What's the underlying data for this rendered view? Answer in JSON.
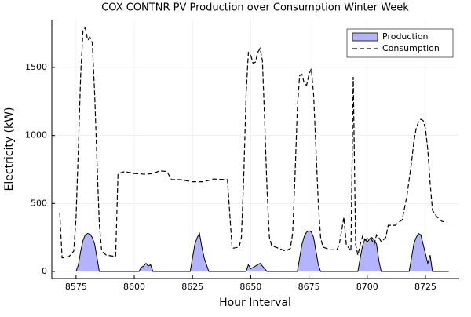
{
  "chart_data": {
    "type": "area-line",
    "title": "COX CONTNR PV Production over Consumption Winter Week",
    "x_label": "Hour Interval",
    "y_label": "Electricity (kW)",
    "xlim": [
      8564.6,
      8739.5
    ],
    "ylim": [
      -52,
      1852
    ],
    "xticks": [
      8575,
      8600,
      8625,
      8650,
      8675,
      8700,
      8725
    ],
    "yticks": [
      0,
      500,
      1000,
      1500
    ],
    "grid": true,
    "legend": "top-right",
    "series": [
      {
        "name": "Production",
        "kind": "area",
        "color": "#b3b3ff",
        "line_color": "#000000",
        "x": [
          8575,
          8576,
          8577,
          8578,
          8579,
          8580,
          8581,
          8582,
          8583,
          8584,
          8585,
          8602,
          8603,
          8604,
          8605,
          8606,
          8607,
          8608,
          8624,
          8625,
          8626,
          8627,
          8628,
          8629,
          8630,
          8631,
          8632,
          8648,
          8649,
          8650,
          8651,
          8652,
          8653,
          8654,
          8655,
          8656,
          8657,
          8670,
          8671,
          8672,
          8673,
          8674,
          8675,
          8676,
          8677,
          8678,
          8679,
          8680,
          8696,
          8697,
          8698,
          8699,
          8700,
          8701,
          8702,
          8703,
          8704,
          8705,
          8706,
          8718,
          8719,
          8720,
          8721,
          8722,
          8723,
          8724,
          8725,
          8726,
          8727,
          8728,
          8735
        ],
        "values": [
          0,
          50,
          150,
          230,
          270,
          280,
          275,
          250,
          200,
          100,
          0,
          0,
          30,
          40,
          60,
          40,
          50,
          0,
          0,
          100,
          200,
          250,
          280,
          180,
          100,
          50,
          0,
          0,
          50,
          20,
          30,
          40,
          50,
          60,
          40,
          20,
          0,
          0,
          100,
          200,
          260,
          290,
          300,
          290,
          250,
          150,
          50,
          0,
          0,
          100,
          190,
          240,
          215,
          240,
          250,
          230,
          200,
          80,
          0,
          0,
          100,
          200,
          250,
          280,
          270,
          200,
          130,
          60,
          120,
          0,
          0
        ]
      },
      {
        "name": "Consumption",
        "kind": "line",
        "color": "#000000",
        "dash": true,
        "x": [
          8568,
          8569,
          8572,
          8574,
          8575,
          8576,
          8577,
          8578,
          8579,
          8580,
          8581,
          8582,
          8583,
          8584,
          8585,
          8586,
          8588,
          8592,
          8593,
          8596,
          8600,
          8605,
          8608,
          8611,
          8614,
          8616,
          8620,
          8625,
          8630,
          8634,
          8640,
          8642,
          8645,
          8646,
          8647,
          8648,
          8649,
          8650,
          8651,
          8652,
          8653,
          8654,
          8655,
          8656,
          8657,
          8658,
          8659,
          8662,
          8665,
          8667,
          8668,
          8669,
          8670,
          8671,
          8672,
          8673,
          8674,
          8675,
          8676,
          8677,
          8678,
          8679,
          8680,
          8681,
          8684,
          8687,
          8688,
          8690,
          8691,
          8693,
          8694,
          8695,
          8696,
          8697,
          8698,
          8699,
          8700,
          8701,
          8702,
          8703,
          8704,
          8705,
          8706,
          8708,
          8709,
          8712,
          8715,
          8717,
          8719,
          8720,
          8721,
          8722,
          8723,
          8724,
          8725,
          8726,
          8727,
          8728,
          8730,
          8732,
          8734
        ],
        "values": [
          430,
          100,
          110,
          150,
          400,
          900,
          1450,
          1780,
          1790,
          1700,
          1720,
          1680,
          1300,
          800,
          350,
          150,
          120,
          110,
          720,
          735,
          720,
          715,
          720,
          740,
          735,
          675,
          675,
          660,
          660,
          680,
          675,
          170,
          180,
          250,
          700,
          1300,
          1610,
          1590,
          1530,
          1540,
          1610,
          1640,
          1550,
          1100,
          600,
          250,
          190,
          170,
          150,
          170,
          280,
          700,
          1200,
          1440,
          1450,
          1380,
          1370,
          1450,
          1490,
          1300,
          900,
          500,
          250,
          180,
          160,
          160,
          200,
          400,
          200,
          150,
          1430,
          200,
          120,
          200,
          260,
          230,
          240,
          250,
          230,
          200,
          270,
          250,
          220,
          250,
          340,
          340,
          380,
          550,
          800,
          950,
          1050,
          1100,
          1120,
          1110,
          1050,
          900,
          650,
          450,
          400,
          370,
          360
        ]
      }
    ]
  }
}
